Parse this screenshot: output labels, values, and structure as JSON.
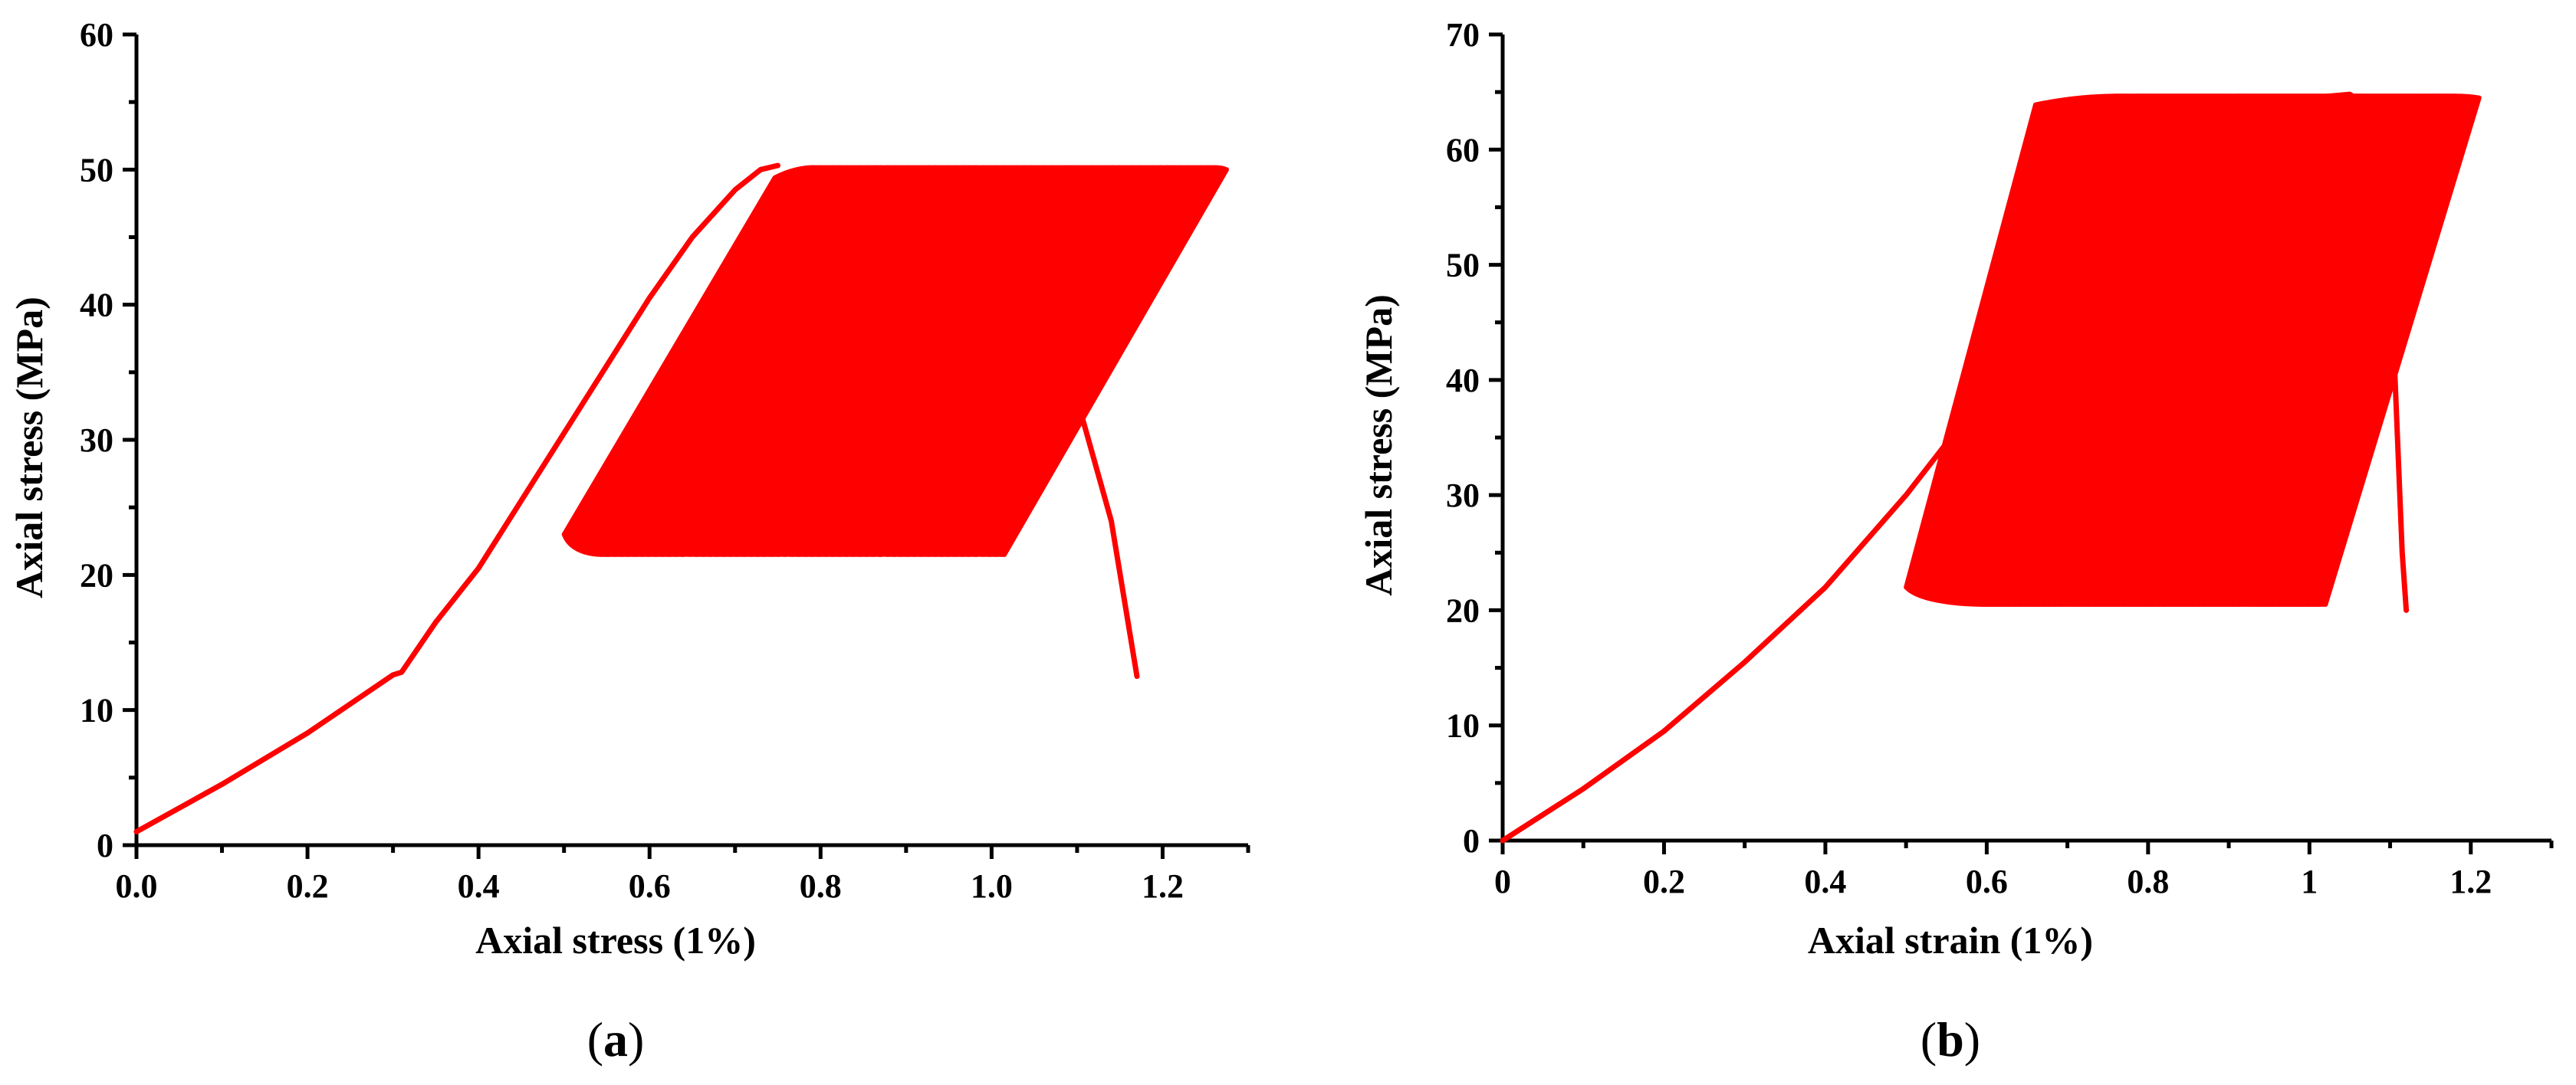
{
  "chart_data": [
    {
      "panel_label": "a",
      "type": "line",
      "xlabel": "Axial stress  (1%)",
      "ylabel": "Axial stress  (MPa)",
      "xlim": [
        0.0,
        1.3
      ],
      "ylim": [
        0,
        60
      ],
      "xticks": [
        0.0,
        0.2,
        0.4,
        0.6,
        0.8,
        1.0,
        1.2
      ],
      "xtick_labels": [
        "0.0",
        "0.2",
        "0.4",
        "0.6",
        "0.8",
        "1.0",
        "1.2"
      ],
      "yticks": [
        0,
        10,
        20,
        30,
        40,
        50,
        60
      ],
      "ytick_labels": [
        "0",
        "10",
        "20",
        "30",
        "40",
        "50",
        "60"
      ],
      "color": "#ff0000",
      "grid": false,
      "series": [
        {
          "loading_path": [
            [
              0.0,
              1.0
            ],
            [
              0.1,
              4.5
            ],
            [
              0.2,
              8.3
            ],
            [
              0.3,
              12.6
            ],
            [
              0.31,
              12.8
            ],
            [
              0.35,
              16.5
            ],
            [
              0.4,
              20.5
            ],
            [
              0.45,
              25.5
            ],
            [
              0.5,
              30.5
            ],
            [
              0.55,
              35.5
            ],
            [
              0.6,
              40.5
            ],
            [
              0.65,
              45.0
            ],
            [
              0.7,
              48.5
            ],
            [
              0.73,
              50.0
            ],
            [
              0.75,
              50.3
            ]
          ],
          "cycles": {
            "strain_start": 0.5,
            "strain_end": 0.97,
            "count": 60,
            "stress_min": 21.5,
            "stress_max": 50.0,
            "loop_width": 0.045
          },
          "final_cycles": [
            {
              "x_min": 0.82,
              "x_max": 0.99,
              "y_min": 22.0,
              "y_max": 48.5
            },
            {
              "x_min": 0.85,
              "x_max": 1.04,
              "y_min": 22.5,
              "y_max": 47.0
            }
          ],
          "failure_path": [
            [
              0.81,
              22.5
            ],
            [
              0.9,
              30.0
            ],
            [
              0.98,
              37.0
            ],
            [
              1.03,
              38.6
            ],
            [
              1.06,
              38.0
            ],
            [
              1.1,
              33.0
            ],
            [
              1.14,
              24.0
            ],
            [
              1.17,
              12.5
            ]
          ]
        }
      ]
    },
    {
      "panel_label": "b",
      "type": "line",
      "xlabel": "Axial strain (1%)",
      "ylabel": "Axial stress (MPa)",
      "xlim": [
        0.0,
        1.3
      ],
      "ylim": [
        0,
        70
      ],
      "xticks": [
        0,
        0.2,
        0.4,
        0.6,
        0.8,
        1.0,
        1.2
      ],
      "xtick_labels": [
        "0",
        "0.2",
        "0.4",
        "0.6",
        "0.8",
        "1",
        "1.2"
      ],
      "yticks": [
        0,
        10,
        20,
        30,
        40,
        50,
        60,
        70
      ],
      "ytick_labels": [
        "0",
        "10",
        "20",
        "30",
        "40",
        "50",
        "60",
        "70"
      ],
      "color": "#ff0000",
      "grid": false,
      "series": [
        {
          "loading_path": [
            [
              0.0,
              0.0
            ],
            [
              0.1,
              4.5
            ],
            [
              0.2,
              9.5
            ],
            [
              0.3,
              15.5
            ],
            [
              0.4,
              22.0
            ],
            [
              0.5,
              30.0
            ],
            [
              0.6,
              39.0
            ],
            [
              0.7,
              48.0
            ],
            [
              0.8,
              57.0
            ],
            [
              0.85,
              62.0
            ],
            [
              0.89,
              64.5
            ]
          ],
          "cycles": {
            "strain_start": 0.5,
            "strain_end": 0.92,
            "count": 60,
            "stress_min": 20.5,
            "stress_max": 64.5,
            "loop_width": 0.1
          },
          "final_cycles": [],
          "failure_path": [
            [
              0.95,
              64.3
            ],
            [
              1.0,
              64.5
            ],
            [
              1.05,
              64.8
            ],
            [
              1.08,
              63.5
            ],
            [
              1.095,
              55.0
            ],
            [
              1.105,
              42.0
            ],
            [
              1.115,
              25.0
            ],
            [
              1.12,
              20.0
            ]
          ]
        }
      ]
    }
  ]
}
